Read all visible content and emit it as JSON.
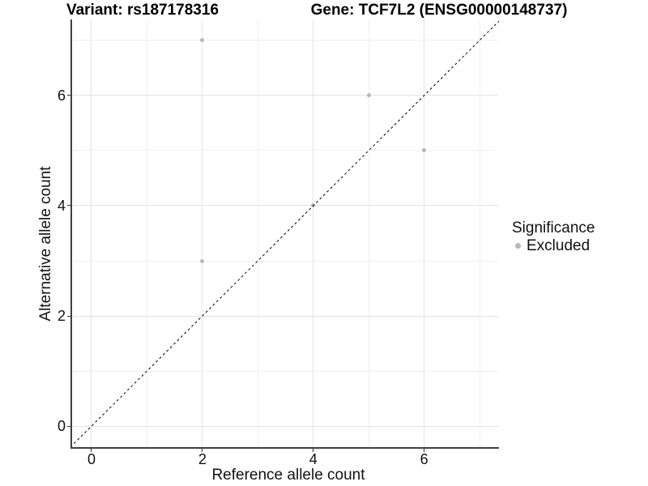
{
  "titles": {
    "variant": "Variant: rs187178316",
    "gene": "Gene: TCF7L2 (ENSG00000148737)"
  },
  "chart_data": {
    "type": "scatter",
    "xlabel": "Reference allele count",
    "ylabel": "Alternative allele count",
    "xlim": [
      -0.35,
      7.35
    ],
    "ylim": [
      -0.38,
      7.38
    ],
    "xticks": [
      0,
      2,
      4,
      6
    ],
    "yticks": [
      0,
      2,
      4,
      6
    ],
    "gridlines_major": [
      0,
      2,
      4,
      6
    ],
    "gridlines_minor": [
      1,
      3,
      5,
      7
    ],
    "grid": true,
    "points": [
      {
        "x": 2,
        "y": 7
      },
      {
        "x": 5,
        "y": 6
      },
      {
        "x": 6,
        "y": 5
      },
      {
        "x": 4,
        "y": 4
      },
      {
        "x": 2,
        "y": 3
      }
    ],
    "point_color": "#b9b9b9",
    "identity_line": {
      "slope": 1,
      "intercept": 0,
      "style": "dashed",
      "color": "#000000"
    },
    "legend": {
      "position": "right",
      "title": "Significance",
      "items": [
        {
          "label": "Excluded",
          "color": "#b9b9b9"
        }
      ]
    }
  },
  "colors": {
    "background": "#ffffff",
    "grid_major": "#e4e4e4",
    "grid_minor": "#f0f0f0",
    "axis_line": "#404040",
    "text": "#111111"
  }
}
